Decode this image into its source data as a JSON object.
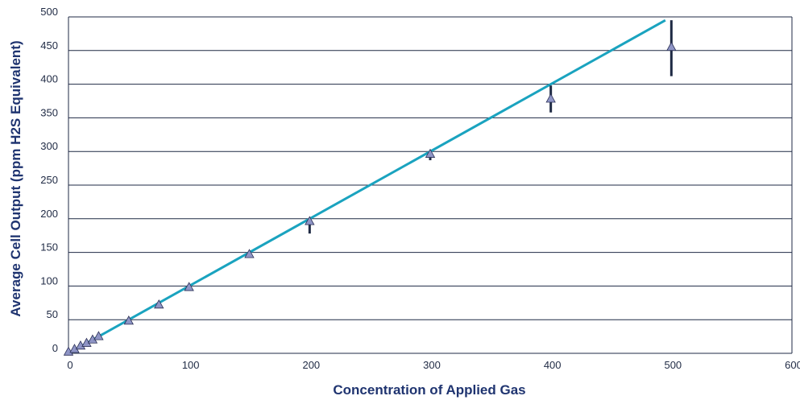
{
  "chart_data": {
    "type": "scatter",
    "title": "",
    "xlabel": "Concentration of Applied Gas",
    "ylabel": "Average Cell Output (ppm H2S Equivalent)",
    "xlim": [
      0,
      600
    ],
    "ylim": [
      0,
      500
    ],
    "x_ticks": [
      0,
      100,
      200,
      300,
      400,
      500,
      600
    ],
    "y_ticks": [
      0,
      50,
      100,
      150,
      200,
      250,
      300,
      350,
      400,
      450,
      500
    ],
    "grid": "horizontal",
    "series": [
      {
        "type": "scatter",
        "marker": "triangle",
        "points": [
          {
            "x": 0,
            "y": 2
          },
          {
            "x": 5,
            "y": 6
          },
          {
            "x": 10,
            "y": 11
          },
          {
            "x": 15,
            "y": 15
          },
          {
            "x": 20,
            "y": 20
          },
          {
            "x": 25,
            "y": 25
          },
          {
            "x": 50,
            "y": 48
          },
          {
            "x": 75,
            "y": 72
          },
          {
            "x": 100,
            "y": 98
          },
          {
            "x": 150,
            "y": 147
          },
          {
            "x": 200,
            "y": 196
          },
          {
            "x": 300,
            "y": 296
          },
          {
            "x": 400,
            "y": 378
          },
          {
            "x": 500,
            "y": 455
          }
        ],
        "error_bars": [
          {
            "x": 200,
            "low": 178,
            "high": 200
          },
          {
            "x": 300,
            "low": 287,
            "high": 300
          },
          {
            "x": 400,
            "low": 358,
            "high": 398
          },
          {
            "x": 500,
            "low": 412,
            "high": 495
          }
        ]
      },
      {
        "type": "line",
        "points": [
          {
            "x": 0,
            "y": 0
          },
          {
            "x": 495,
            "y": 495
          }
        ]
      }
    ]
  },
  "colors": {
    "line": "#1aa3bf",
    "marker_fill": "#8f95c6",
    "marker_stroke": "#2a2f55",
    "error_bar": "#1f2a44",
    "grid": "#1f2a44",
    "axis_title": "#1f3470"
  }
}
